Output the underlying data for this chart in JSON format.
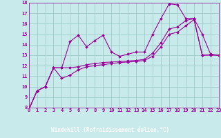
{
  "x_values": [
    0,
    1,
    2,
    3,
    4,
    5,
    6,
    7,
    8,
    9,
    10,
    11,
    12,
    13,
    14,
    15,
    16,
    17,
    18,
    19,
    20,
    21,
    22,
    23
  ],
  "line1_y": [
    7.8,
    9.6,
    10.0,
    11.8,
    11.8,
    14.3,
    14.9,
    13.8,
    14.4,
    14.9,
    13.3,
    12.9,
    13.1,
    13.3,
    13.3,
    15.0,
    16.5,
    17.9,
    17.8,
    16.5,
    16.5,
    15.0,
    13.1,
    13.0
  ],
  "line2_y": [
    7.8,
    9.6,
    10.0,
    11.8,
    11.8,
    11.8,
    11.9,
    12.1,
    12.2,
    12.3,
    12.35,
    12.4,
    12.45,
    12.5,
    12.6,
    13.2,
    14.2,
    15.5,
    15.7,
    16.3,
    16.5,
    13.0,
    13.05,
    13.0
  ],
  "line3_y": [
    7.8,
    9.6,
    10.0,
    11.8,
    10.8,
    11.1,
    11.6,
    11.9,
    12.0,
    12.1,
    12.2,
    12.3,
    12.35,
    12.4,
    12.5,
    12.9,
    13.8,
    15.0,
    15.2,
    15.8,
    16.4,
    13.0,
    13.0,
    13.0
  ],
  "color": "#990099",
  "background_color": "#c8eaea",
  "grid_color": "#a0cccc",
  "label_bg_color": "#800080",
  "xlabel": "Windchill (Refroidissement éolien,°C)",
  "ylim": [
    8,
    18
  ],
  "xlim": [
    0,
    23
  ],
  "yticks": [
    8,
    9,
    10,
    11,
    12,
    13,
    14,
    15,
    16,
    17,
    18
  ],
  "xticks": [
    0,
    1,
    2,
    3,
    4,
    5,
    6,
    7,
    8,
    9,
    10,
    11,
    12,
    13,
    14,
    15,
    16,
    17,
    18,
    19,
    20,
    21,
    22,
    23
  ]
}
